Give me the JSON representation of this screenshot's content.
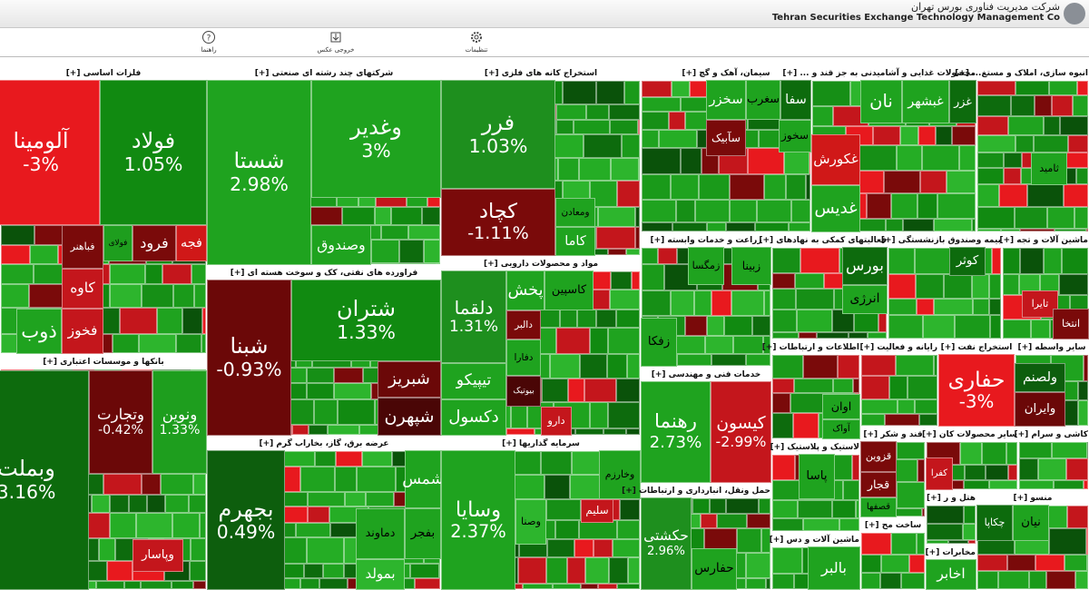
{
  "header": {
    "company_fa": "شرکت مدیریت فناوری بورس تهران",
    "company_en": "Tehran Securities Exchange Technology Management Co"
  },
  "toolbar": {
    "items": [
      "راهنما",
      "خروجی عکس",
      "تنظیمات"
    ]
  },
  "sectors": [
    {
      "title": "فلزات اساسی [+]",
      "tiles": [
        {
          "name": "آلومینا",
          "change": "-3%",
          "color": "#e8191e"
        },
        {
          "name": "فولاد",
          "change": "1.05%",
          "color": "#118a11"
        },
        {
          "name": "فولای",
          "color": "#1e9e1e"
        },
        {
          "name": "فرود",
          "color": "#7a0a0a"
        },
        {
          "name": "فجه",
          "color": "#d01818"
        },
        {
          "name": "فباهنر",
          "color": "#7a0a0a"
        },
        {
          "name": "کاوه",
          "color": "#c4161c"
        },
        {
          "name": "فخوز",
          "color": "#c4161c"
        },
        {
          "name": "ذوب",
          "color": "#1fa31f"
        }
      ]
    },
    {
      "title": "بانکها و موسسات اعتباری [+]",
      "tiles": [
        {
          "name": "وبملت",
          "change": "3.16%",
          "color": "#0d6b0d"
        },
        {
          "name": "وتجارت",
          "change": "-0.42%",
          "color": "#6b0808"
        },
        {
          "name": "ونوین",
          "change": "1.33%",
          "color": "#1e9e1e"
        },
        {
          "name": "وپاسار",
          "color": "#c4161c"
        }
      ]
    },
    {
      "title": "شرکتهای چند رشته ای صنعتی [+]",
      "tiles": [
        {
          "name": "شستا",
          "change": "2.98%",
          "color": "#1fa31f"
        },
        {
          "name": "وغدیر",
          "change": "3%",
          "color": "#1fa31f"
        },
        {
          "name": "وصندوق",
          "color": "#1fa31f"
        }
      ]
    },
    {
      "title": "فراورده های نفتی، کک و سوخت هسته ای [+]",
      "tiles": [
        {
          "name": "شبنا",
          "change": "-0.93%",
          "color": "#6b0808"
        },
        {
          "name": "شتران",
          "change": "1.33%",
          "color": "#118a11"
        },
        {
          "name": "شبریز",
          "color": "#6b0808"
        },
        {
          "name": "شپهرن",
          "color": "#4a0606"
        }
      ]
    },
    {
      "title": "عرضه برق، گاز، بخاراب گرم [+]",
      "tiles": [
        {
          "name": "بجهرم",
          "change": "0.49%",
          "color": "#0d5e0d"
        },
        {
          "name": "دماوند",
          "color": "#1fa31f"
        },
        {
          "name": "بفجر",
          "color": "#1fa31f"
        },
        {
          "name": "بمولد",
          "color": "#2db52d"
        },
        {
          "name": "شمس",
          "color": "#1fa31f"
        }
      ]
    },
    {
      "title": "استخراج کانه های فلزی [+]",
      "tiles": [
        {
          "name": "فرر",
          "change": "1.03%",
          "color": "#1e8f1e"
        },
        {
          "name": "کچاد",
          "change": "-1.11%",
          "color": "#7a0a0a"
        },
        {
          "name": "ومعادن",
          "color": "#1fa31f"
        },
        {
          "name": "کاما",
          "color": "#1fa31f"
        }
      ]
    },
    {
      "title": "مواد و محصولات دارویی [+]",
      "tiles": [
        {
          "name": "دلقما",
          "change": "1.31%",
          "color": "#1e8f1e"
        },
        {
          "name": "تیپیکو",
          "color": "#1fa31f"
        },
        {
          "name": "دکسول",
          "color": "#1fa31f"
        },
        {
          "name": "پخش",
          "color": "#1fa31f"
        },
        {
          "name": "کاسپین",
          "color": "#1fa31f"
        },
        {
          "name": "دالبر",
          "color": "#7a0a0a"
        },
        {
          "name": "بیوتیک",
          "color": "#4a0606"
        },
        {
          "name": "دارو",
          "color": "#c4161c"
        },
        {
          "name": "دفارا",
          "color": "#1fa31f"
        }
      ]
    },
    {
      "title": "سرمایه گذاریها [+]",
      "tiles": [
        {
          "name": "وسایا",
          "change": "2.37%",
          "color": "#1fa31f"
        },
        {
          "name": "سلیم",
          "color": "#c4161c"
        },
        {
          "name": "وخارزم",
          "color": "#1fa31f"
        },
        {
          "name": "وصنا",
          "color": "#2db52d"
        }
      ]
    },
    {
      "title": "سیمان، آهک و گچ [+]",
      "tiles": [
        {
          "name": "سخزر",
          "color": "#1fa31f"
        },
        {
          "name": "سغرب",
          "color": "#1fa31f"
        },
        {
          "name": "سفا",
          "color": "#0d6b0d"
        },
        {
          "name": "سآبیک",
          "color": "#7a0a0a"
        },
        {
          "name": "سخوز",
          "color": "#1fa31f"
        }
      ]
    },
    {
      "title": "محصولات غذایی و آشامیدنی به جز قند و ... [+]",
      "tiles": [
        {
          "name": "غکورش",
          "color": "#d01818"
        },
        {
          "name": "غدیس",
          "color": "#1fa31f"
        },
        {
          "name": "نان",
          "color": "#1fa31f"
        },
        {
          "name": "غبشهر",
          "color": "#1fa31f"
        },
        {
          "name": "غزر",
          "color": "#0d6b0d"
        }
      ]
    },
    {
      "title": "انبوه سازی، املاک و مستغ... [+]",
      "tiles": [
        {
          "name": "ثامید",
          "color": "#1fa31f"
        }
      ]
    },
    {
      "title": "زراعت و خدمات وابسته [+]",
      "tiles": [
        {
          "name": "زمگسا",
          "color": "#1fa31f"
        },
        {
          "name": "زبینا",
          "color": "#1fa31f"
        },
        {
          "name": "زفکا",
          "color": "#1fa31f"
        }
      ]
    },
    {
      "title": "خدمات فنی و مهندسی [+]",
      "tiles": [
        {
          "name": "رهنما",
          "change": "2.73%",
          "color": "#1fa31f"
        },
        {
          "name": "کیسون",
          "change": "-2.99%",
          "color": "#c4161c"
        }
      ]
    },
    {
      "title": "حمل ونقل، انبارداری و ارتباطات [+]",
      "tiles": [
        {
          "name": "حکشتی",
          "change": "2.96%",
          "color": "#1e8f1e"
        },
        {
          "name": "حفارس",
          "color": "#1fa31f"
        }
      ]
    },
    {
      "title": "فعالیتهای کمکی به نهادهای [+]",
      "tiles": [
        {
          "name": "بورس",
          "color": "#0d6b0d"
        },
        {
          "name": "انرژی",
          "color": "#1fa31f"
        }
      ]
    },
    {
      "title": "بیمه وصندوق بازنشستگی [+]",
      "tiles": [
        {
          "name": "کوثر",
          "color": "#0d6b0d"
        }
      ]
    },
    {
      "title": "ماشین آلات و تجه [+]",
      "tiles": [
        {
          "name": "تایرا",
          "color": "#c4161c"
        },
        {
          "name": "انتخا",
          "color": "#7a0a0a"
        }
      ]
    },
    {
      "title": "اطلاعات و ارتباطات [+]",
      "tiles": [
        {
          "name": "اوان",
          "color": "#1fa31f"
        },
        {
          "name": "آواک",
          "color": "#1fa31f"
        }
      ]
    },
    {
      "title": "رایانه و فعالیت [+]",
      "tiles": []
    },
    {
      "title": "استخراج نفت [+]",
      "tiles": [
        {
          "name": "حفاری",
          "change": "-3%",
          "color": "#e8191e"
        }
      ]
    },
    {
      "title": "سایر واسطه [+]",
      "tiles": [
        {
          "name": "ولصنم",
          "color": "#0d5e0d"
        },
        {
          "name": "وایران",
          "color": "#6b0808"
        }
      ]
    },
    {
      "title": "لاستیک و پلاستیک [+]",
      "tiles": [
        {
          "name": "پاسا",
          "color": "#1fa31f"
        }
      ]
    },
    {
      "title": "ماشین آلات و دس [+]",
      "tiles": [
        {
          "name": "بالبر",
          "color": "#1fa31f"
        }
      ]
    },
    {
      "title": "قند و شکر [+]",
      "tiles": [
        {
          "name": "قزوین",
          "color": "#7a0a0a"
        },
        {
          "name": "قجار",
          "color": "#7a0a0a"
        },
        {
          "name": "قصفها",
          "color": "#1fa31f"
        }
      ]
    },
    {
      "title": "سایر محصولات کان [+]",
      "tiles": [
        {
          "name": "کفرا",
          "color": "#c4161c"
        }
      ]
    },
    {
      "title": "کاشی و سرام [+]",
      "tiles": []
    },
    {
      "title": "ساخت مح [+]",
      "tiles": []
    },
    {
      "title": "هتل و ر [+]",
      "tiles": []
    },
    {
      "title": "مخابرات [+]",
      "tiles": [
        {
          "name": "اخابر",
          "color": "#1fa31f"
        }
      ]
    },
    {
      "title": "منسو [+]",
      "tiles": [
        {
          "name": "چکاپا",
          "color": "#0d6b0d"
        },
        {
          "name": "نیان",
          "color": "#1fa31f"
        }
      ]
    }
  ]
}
